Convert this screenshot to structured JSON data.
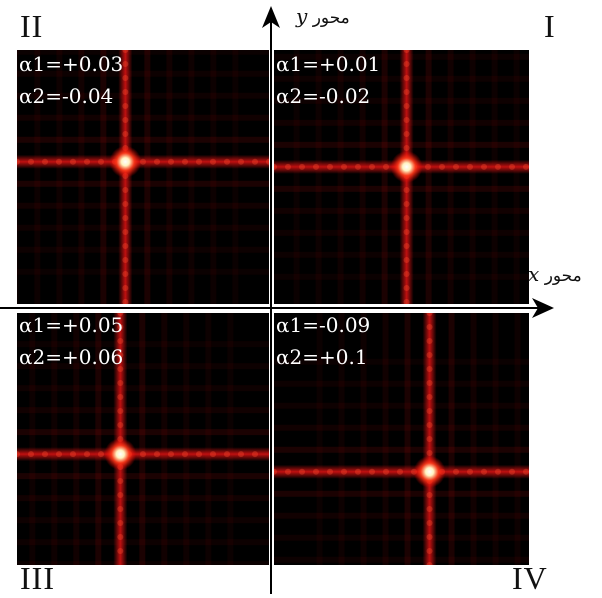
{
  "quadrant_labels": {
    "q1": "I",
    "q2": "II",
    "q3": "III",
    "q4": "IV"
  },
  "axes": {
    "x_label_text": "محور",
    "x_symbol": "x",
    "y_label_text": "محور",
    "y_symbol": "y"
  },
  "panels": {
    "q2": {
      "a1": "α1=+0.03",
      "a2": "α2=-0.04",
      "spot": [
        0.43,
        0.44
      ]
    },
    "q1": {
      "a1": "α1=+0.01",
      "a2": "α2=-0.02",
      "spot": [
        0.52,
        0.46
      ]
    },
    "q3": {
      "a1": "α1=+0.05",
      "a2": "α2=+0.06",
      "spot": [
        0.41,
        0.56
      ]
    },
    "q4": {
      "a1": "α1=-0.09",
      "a2": "α2=+0.1",
      "spot": [
        0.61,
        0.63
      ]
    }
  },
  "colors": {
    "core": "#fff3c0",
    "mid": "#ff3a1a",
    "line": "#c01010",
    "bg": "#000000"
  }
}
